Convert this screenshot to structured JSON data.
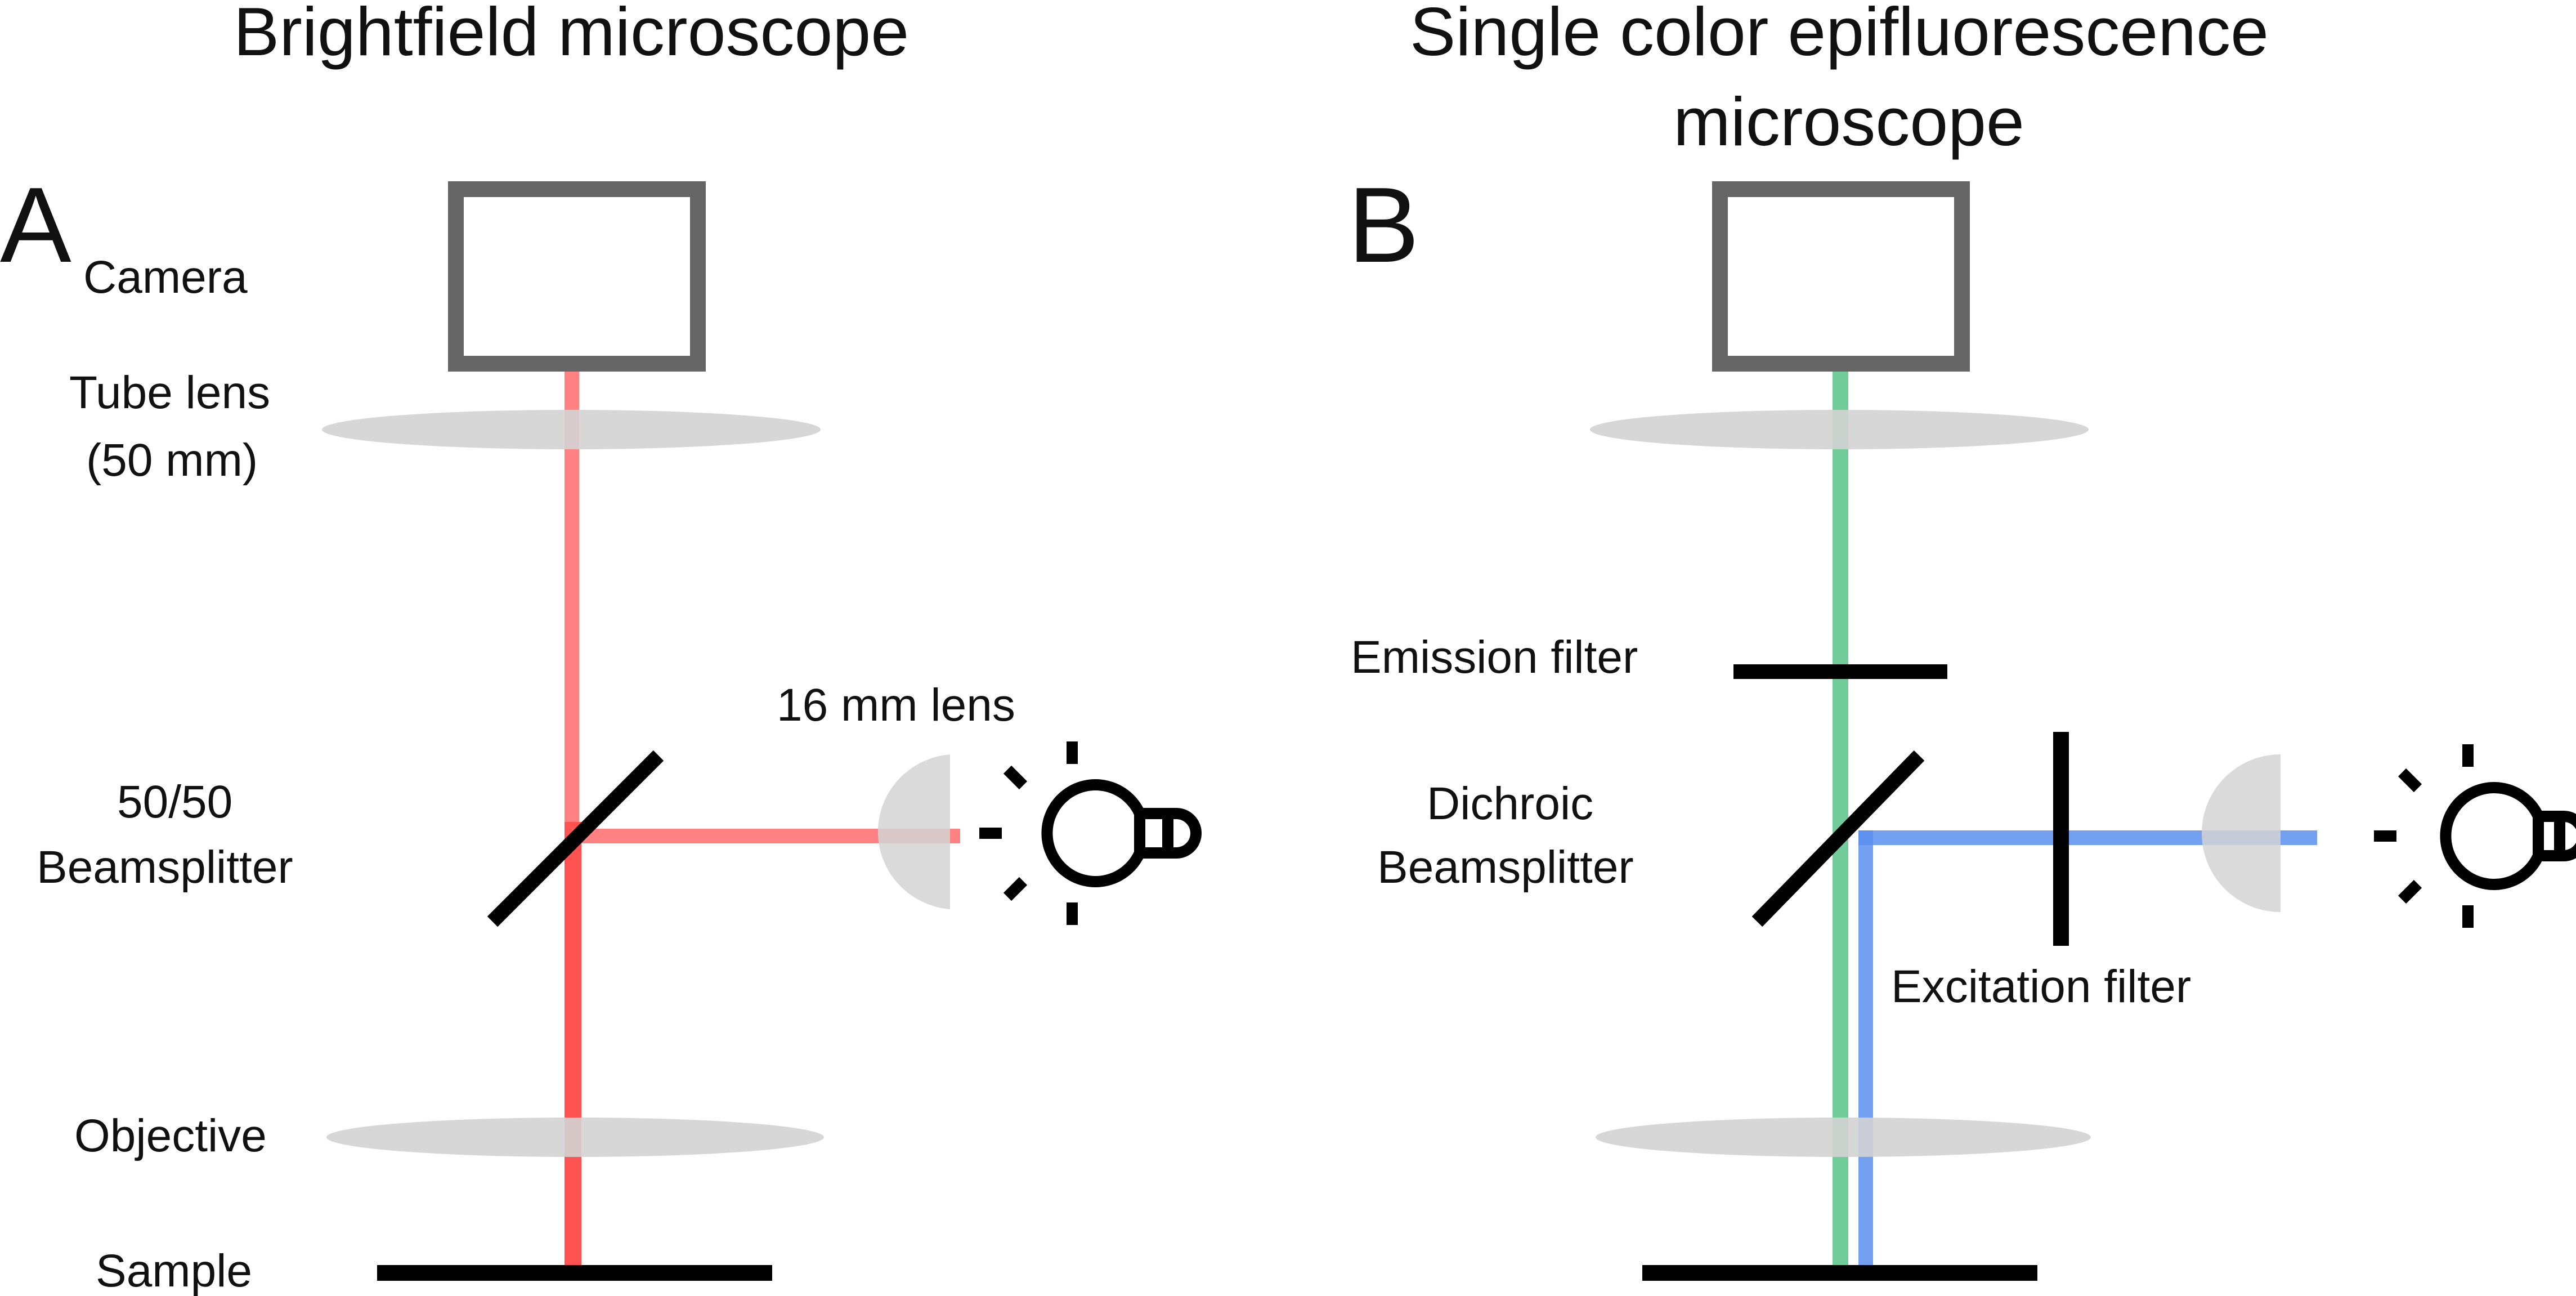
{
  "panel_a": {
    "letter": "A",
    "title": "Brightfield microscope",
    "labels": {
      "camera": "Camera",
      "tube_lens_line1": "Tube lens",
      "tube_lens_line2": "(50 mm)",
      "lens_16": "16 mm lens",
      "beamsplitter_line1": "50/50",
      "beamsplitter_line2": "Beamsplitter",
      "objective": "Objective",
      "sample": "Sample"
    },
    "beam_color": "#ff4d4d"
  },
  "panel_b": {
    "letter": "B",
    "title_line1": "Single color epifluorescence",
    "title_line2": "microscope",
    "labels": {
      "emission_filter": "Emission filter",
      "dichroic_line1": "Dichroic",
      "dichroic_line2": "Beamsplitter",
      "excitation_filter": "Excitation filter"
    },
    "emission_color": "#4dbf7f",
    "excitation_color": "#5c8ff0"
  },
  "colors": {
    "camera_frame": "#666666",
    "lens": "#d3d3d3",
    "mirror": "#000000",
    "lamp": "#000000"
  },
  "icons": [
    "camera-frame",
    "lens-ellipse",
    "half-lens",
    "beamsplitter-mirror",
    "light-bulb-icon",
    "filter-bar",
    "sample-stage"
  ]
}
